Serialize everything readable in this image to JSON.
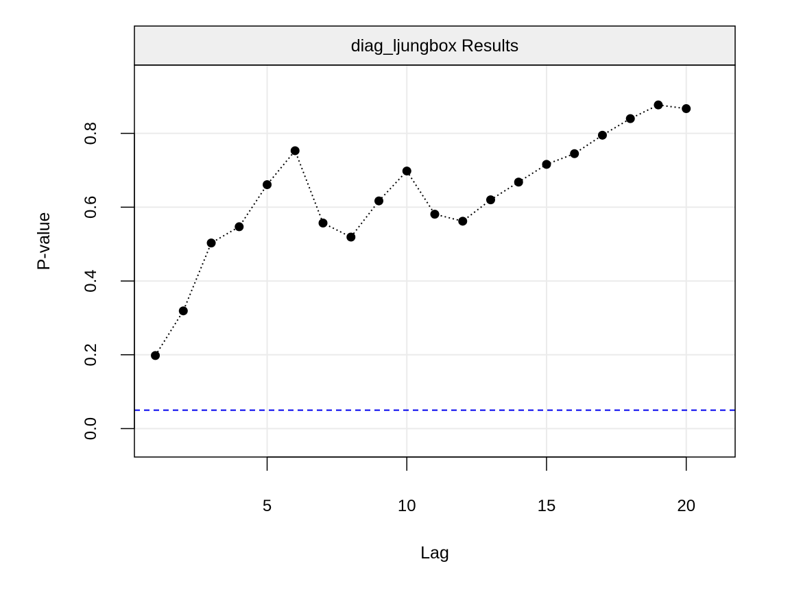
{
  "chart_data": {
    "type": "line",
    "title": "diag_ljungbox Results",
    "xlabel": "Lag",
    "ylabel": "P-value",
    "x": [
      1,
      2,
      3,
      4,
      5,
      6,
      7,
      8,
      9,
      10,
      11,
      12,
      13,
      14,
      15,
      16,
      17,
      18,
      19,
      20
    ],
    "series": [
      {
        "values": [
          0.198,
          0.319,
          0.503,
          0.547,
          0.661,
          0.753,
          0.557,
          0.519,
          0.617,
          0.698,
          0.581,
          0.562,
          0.62,
          0.668,
          0.716,
          0.745,
          0.795,
          0.84,
          0.877,
          0.867
        ],
        "color": "#000000",
        "line_style": "dotted",
        "marker": "filled-circle"
      }
    ],
    "reference_lines": [
      {
        "axis": "y",
        "value": 0.05,
        "color": "#0000ee",
        "line_style": "dashed"
      }
    ],
    "xlim": [
      0.25,
      21.75
    ],
    "ylim": [
      -0.077,
      0.985
    ],
    "x_ticks": [
      5,
      10,
      15,
      20
    ],
    "x_tick_labels": [
      "5",
      "10",
      "15",
      "20"
    ],
    "y_ticks": [
      0,
      0.2,
      0.4,
      0.6,
      0.8
    ],
    "y_tick_labels": [
      "0.0",
      "0.2",
      "0.4",
      "0.6",
      "0.8"
    ],
    "grid": true,
    "strip_color": "#efefef"
  }
}
